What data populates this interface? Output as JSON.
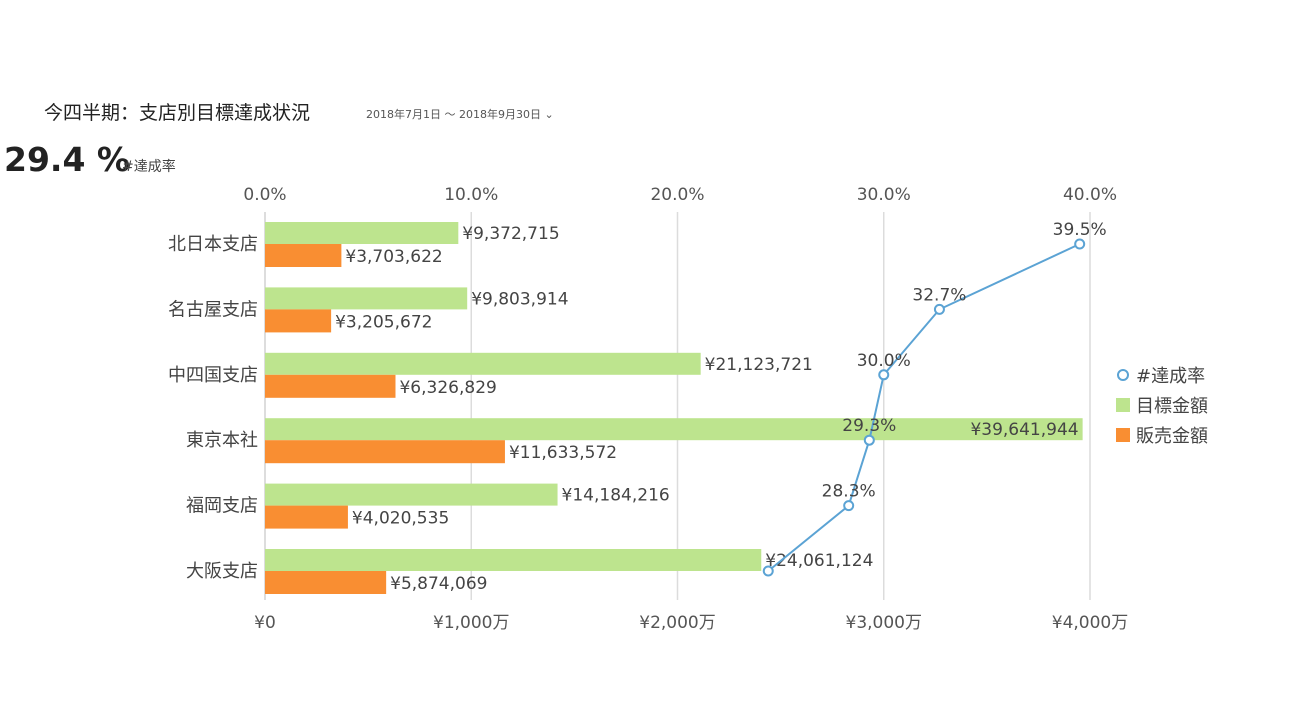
{
  "header": {
    "title": "今四半期：支店別目標達成状況",
    "date_range": "2018年7月1日 ～ 2018年9月30日",
    "dropdown_icon": "chevron-down-icon",
    "kpi_value": "29.4 %",
    "kpi_label": "#達成率"
  },
  "chart_data": {
    "type": "bar",
    "orientation": "horizontal",
    "categories": [
      "北日本支店",
      "名古屋支店",
      "中四国支店",
      "東京本社",
      "福岡支店",
      "大阪支店"
    ],
    "series": [
      {
        "name": "目標金額",
        "kind": "bar",
        "color": "#bde48e",
        "values": [
          9372715,
          9803914,
          21123721,
          39641944,
          14184216,
          24061124
        ],
        "labels": [
          "¥9,372,715",
          "¥9,803,914",
          "¥21,123,721",
          "¥39,641,944",
          "¥14,184,216",
          "¥24,061,124"
        ]
      },
      {
        "name": "販売金額",
        "kind": "bar",
        "color": "#f98e32",
        "values": [
          3703622,
          3205672,
          6326829,
          11633572,
          4020535,
          5874069
        ],
        "labels": [
          "¥3,703,622",
          "¥3,205,672",
          "¥6,326,829",
          "¥11,633,572",
          "¥4,020,535",
          "¥5,874,069"
        ]
      },
      {
        "name": "#達成率",
        "kind": "line",
        "color": "#5ba3d4",
        "values": [
          39.5,
          32.7,
          30.0,
          29.3,
          28.3,
          24.4
        ],
        "labels": [
          "39.5%",
          "32.7%",
          "30.0%",
          "29.3%",
          "28.3%",
          ""
        ]
      }
    ],
    "x_axis_bottom": {
      "range": [
        0,
        40000000
      ],
      "ticks": [
        0,
        10000000,
        20000000,
        30000000,
        40000000
      ],
      "tick_labels": [
        "¥0",
        "¥1,000万",
        "¥2,000万",
        "¥3,000万",
        "¥4,000万"
      ]
    },
    "x_axis_top": {
      "range": [
        0,
        40
      ],
      "ticks": [
        0,
        10,
        20,
        30,
        40
      ],
      "tick_labels": [
        "0.0%",
        "10.0%",
        "20.0%",
        "30.0%",
        "40.0%"
      ]
    },
    "grid": true,
    "legend_position": "right"
  }
}
